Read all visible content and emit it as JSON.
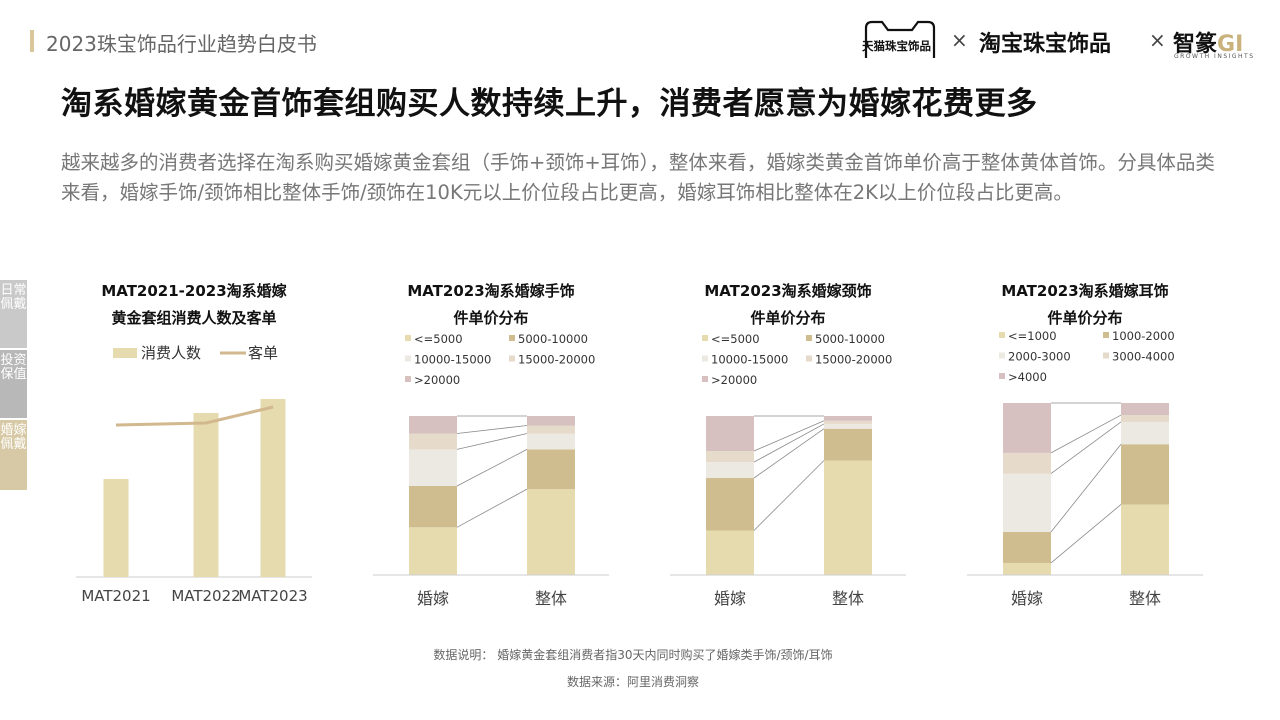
{
  "header": {
    "report_title": "2023珠宝饰品行业趋势白皮书",
    "logo_tmall": "天猫珠宝饰品",
    "times": "×",
    "logo_taobao": "淘宝珠宝饰品",
    "logo_zhizhuan": "智篆",
    "logo_zhizhuan_g": "GI",
    "logo_sub": "GROWTH INSIGHTS"
  },
  "main_title": "淘系婚嫁黄金首饰套组购买人数持续上升，消费者愿意为婚嫁花费更多",
  "description": "越来越多的消费者选择在淘系购买婚嫁黄金套组（手饰+颈饰+耳饰），整体来看，婚嫁类黄金首饰单价高于整体黄体首饰。分具体品类来看，婚嫁手饰/颈饰相比整体手饰/颈饰在10K元以上价位段占比更高，婚嫁耳饰相比整体在2K以上价位段占比更高。",
  "side_tabs": [
    "日常佩戴",
    "投资保值",
    "婚嫁佩戴"
  ],
  "colors": {
    "c1": "#e6dbae",
    "c2": "#cfbd90",
    "c3": "#ece8e2",
    "c4": "#e6dacb",
    "c5": "#d6c0c0",
    "line": "#d2b88e",
    "axis": "#cccccc",
    "connector": "#8a8a8a"
  },
  "chart_data": [
    {
      "type": "bar",
      "title_line1": "MAT2021-2023淘系婚嫁",
      "title_line2": "黄金套组消费人数及客单",
      "categories": [
        "MAT2021",
        "MAT2022",
        "MAT2023"
      ],
      "series": [
        {
          "name": "消费人数",
          "kind": "bar",
          "values": [
            49,
            82,
            89
          ]
        },
        {
          "name": "客单",
          "kind": "line",
          "values": [
            76,
            77,
            85
          ]
        }
      ],
      "ylim": [
        0,
        100
      ],
      "legend": "top"
    },
    {
      "type": "bar",
      "stacked": true,
      "title_line1": "MAT2023淘系婚嫁手饰",
      "title_line2": "件单价分布",
      "categories": [
        "婚嫁",
        "整体"
      ],
      "series": [
        {
          "name": "<=5000",
          "values": [
            30,
            54
          ]
        },
        {
          "name": "5000-10000",
          "values": [
            26,
            25
          ]
        },
        {
          "name": "10000-15000",
          "values": [
            23,
            10
          ]
        },
        {
          "name": "15000-20000",
          "values": [
            10,
            5
          ]
        },
        {
          "name": ">20000",
          "values": [
            11,
            6
          ]
        }
      ],
      "ylim": [
        0,
        100
      ],
      "legend": "top"
    },
    {
      "type": "bar",
      "stacked": true,
      "title_line1": "MAT2023淘系婚嫁颈饰",
      "title_line2": "件单价分布",
      "categories": [
        "婚嫁",
        "整体"
      ],
      "series": [
        {
          "name": "<=5000",
          "values": [
            28,
            72
          ]
        },
        {
          "name": "5000-10000",
          "values": [
            33,
            20
          ]
        },
        {
          "name": "10000-15000",
          "values": [
            10,
            3
          ]
        },
        {
          "name": "15000-20000",
          "values": [
            7,
            2
          ]
        },
        {
          "name": ">20000",
          "values": [
            22,
            3
          ]
        }
      ],
      "ylim": [
        0,
        100
      ],
      "legend": "top"
    },
    {
      "type": "bar",
      "stacked": true,
      "title_line1": "MAT2023淘系婚嫁耳饰",
      "title_line2": "件单价分布",
      "categories": [
        "婚嫁",
        "整体"
      ],
      "series": [
        {
          "name": "<=1000",
          "values": [
            7,
            41
          ]
        },
        {
          "name": "1000-2000",
          "values": [
            18,
            35
          ]
        },
        {
          "name": "2000-3000",
          "values": [
            34,
            13
          ]
        },
        {
          "name": "3000-4000",
          "values": [
            12,
            4
          ]
        },
        {
          "name": ">4000",
          "values": [
            29,
            7
          ]
        }
      ],
      "ylim": [
        0,
        100
      ],
      "legend": "top"
    }
  ],
  "footer": {
    "note": "数据说明：  婚嫁黄金套组消费者指30天内同时购买了婚嫁类手饰/颈饰/耳饰",
    "source": "数据来源：阿里消费洞察"
  }
}
